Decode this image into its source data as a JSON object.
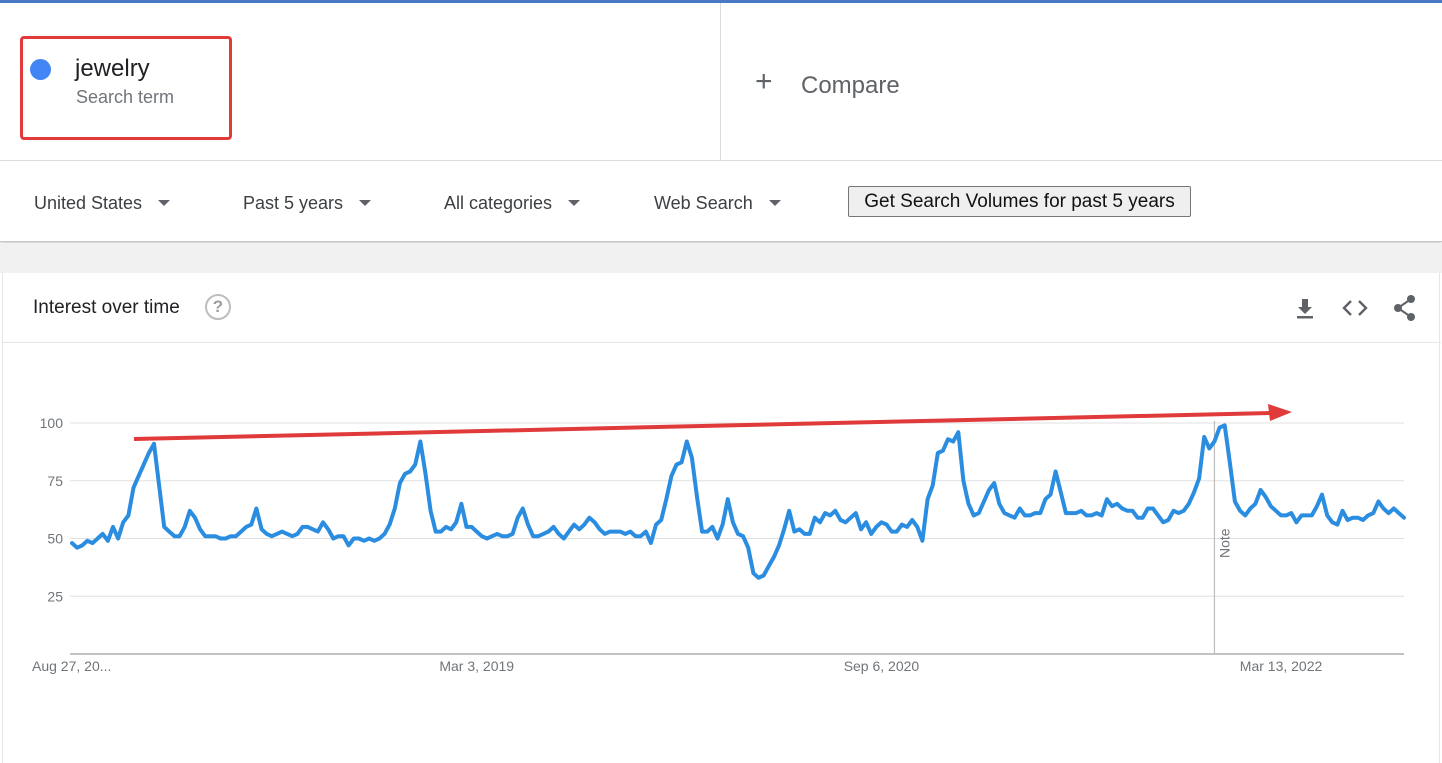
{
  "colors": {
    "series": "#2a8de0",
    "term_dot": "#4285f4",
    "highlight": "#e03a3a",
    "arrow": "#e03a3a",
    "grid": "#e0e0e0"
  },
  "term": {
    "name": "jewelry",
    "type": "Search term"
  },
  "compare": {
    "plus": "+",
    "label": "Compare"
  },
  "filters": {
    "region": "United States",
    "period": "Past 5 years",
    "category": "All categories",
    "search_type": "Web Search",
    "volume_button": "Get Search Volumes for past 5 years"
  },
  "card": {
    "title": "Interest over time",
    "help": "?"
  },
  "icons": {
    "help": "help-circle-icon",
    "download": "download-icon",
    "embed": "embed-code-icon",
    "share": "share-icon"
  },
  "chart_data": {
    "type": "line",
    "title": "",
    "xlabel": "",
    "ylabel": "",
    "ylim": [
      0,
      100
    ],
    "yticks": [
      "100",
      "75",
      "50",
      "25"
    ],
    "x_range": [
      "Aug 27, 2017",
      "Aug 21, 2022"
    ],
    "x_tick_labels": [
      "Aug 27, 20...",
      "Mar 3, 2019",
      "Sep 6, 2020",
      "Mar 13, 2022"
    ],
    "grid": true,
    "annotation": {
      "label": "Note",
      "index": 223
    },
    "series": [
      {
        "values": [
          48,
          46,
          47,
          49,
          48,
          50,
          52,
          49,
          55,
          50,
          57,
          60,
          72,
          77,
          82,
          87,
          91,
          73,
          55,
          53,
          51,
          51,
          55,
          62,
          59,
          54,
          51,
          51,
          51,
          50,
          50,
          51,
          51,
          53,
          55,
          56,
          63,
          54,
          52,
          51,
          52,
          53,
          52,
          51,
          52,
          55,
          55,
          54,
          53,
          57,
          54,
          50,
          51,
          51,
          47,
          50,
          50,
          49,
          50,
          49,
          50,
          52,
          56,
          63,
          74,
          78,
          79,
          82,
          92,
          78,
          62,
          53,
          53,
          55,
          54,
          57,
          65,
          55,
          55,
          53,
          51,
          50,
          51,
          52,
          51,
          51,
          52,
          59,
          63,
          56,
          51,
          51,
          52,
          53,
          55,
          52,
          50,
          53,
          56,
          54,
          56,
          59,
          57,
          54,
          52,
          53,
          53,
          53,
          52,
          53,
          51,
          51,
          53,
          48,
          56,
          58,
          67,
          77,
          82,
          83,
          92,
          85,
          68,
          53,
          53,
          55,
          50,
          56,
          67,
          57,
          52,
          51,
          46,
          35,
          33,
          34,
          38,
          42,
          47,
          54,
          62,
          53,
          54,
          52,
          52,
          59,
          57,
          61,
          60,
          62,
          58,
          57,
          59,
          61,
          54,
          57,
          52,
          55,
          57,
          56,
          53,
          53,
          56,
          55,
          58,
          55,
          49,
          67,
          73,
          87,
          88,
          93,
          92,
          96,
          75,
          65,
          60,
          61,
          66,
          71,
          74,
          65,
          61,
          60,
          59,
          63,
          60,
          60,
          61,
          61,
          67,
          69,
          79,
          70,
          61,
          61,
          61,
          62,
          60,
          60,
          61,
          60,
          67,
          64,
          65,
          63,
          62,
          62,
          59,
          59,
          63,
          63,
          60,
          57,
          58,
          62,
          61,
          62,
          65,
          70,
          76,
          94,
          89,
          92,
          98,
          99,
          83,
          66,
          62,
          60,
          63,
          65,
          71,
          68,
          64,
          62,
          60,
          60,
          61,
          57,
          60,
          60,
          60,
          64,
          69,
          60,
          57,
          56,
          62,
          58,
          59,
          59,
          58,
          60,
          61,
          66,
          63,
          61,
          63,
          61,
          59
        ]
      }
    ]
  }
}
